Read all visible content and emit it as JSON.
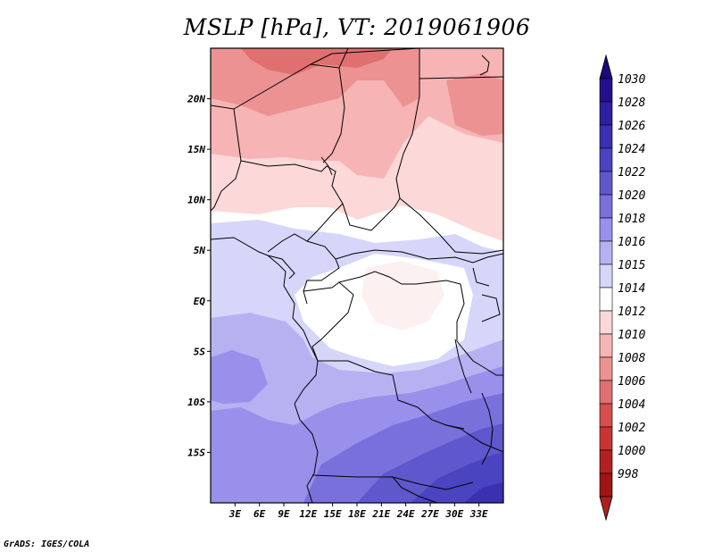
{
  "title": "MSLP [hPa], VT: 2019061906",
  "credit": "GrADS: IGES/COLA",
  "map": {
    "lon_range": [
      0,
      36
    ],
    "lat_range": [
      -20,
      25
    ],
    "lat_ticks": [
      {
        "value": 20,
        "label": "20N"
      },
      {
        "value": 15,
        "label": "15N"
      },
      {
        "value": 10,
        "label": "10N"
      },
      {
        "value": 5,
        "label": "5N"
      },
      {
        "value": 0,
        "label": "EQ"
      },
      {
        "value": -5,
        "label": "5S"
      },
      {
        "value": -10,
        "label": "10S"
      },
      {
        "value": -15,
        "label": "15S"
      }
    ],
    "lon_ticks": [
      {
        "value": 3,
        "label": "3E"
      },
      {
        "value": 6,
        "label": "6E"
      },
      {
        "value": 9,
        "label": "9E"
      },
      {
        "value": 12,
        "label": "12E"
      },
      {
        "value": 15,
        "label": "15E"
      },
      {
        "value": 18,
        "label": "18E"
      },
      {
        "value": 21,
        "label": "21E"
      },
      {
        "value": 24,
        "label": "24E"
      },
      {
        "value": 27,
        "label": "27E"
      },
      {
        "value": 30,
        "label": "30E"
      },
      {
        "value": 33,
        "label": "33E"
      }
    ]
  },
  "colorbar": {
    "levels": [
      {
        "label": "1030",
        "color": "#24108c"
      },
      {
        "label": "1028",
        "color": "#2e20a0"
      },
      {
        "label": "1026",
        "color": "#3a30b0"
      },
      {
        "label": "1024",
        "color": "#4a44c0"
      },
      {
        "label": "1022",
        "color": "#5e58cc"
      },
      {
        "label": "1020",
        "color": "#7a70dc"
      },
      {
        "label": "1018",
        "color": "#9890ea"
      },
      {
        "label": "1016",
        "color": "#b6b2f2"
      },
      {
        "label": "1015",
        "color": "#d6d6fa"
      },
      {
        "label": "1014",
        "color": "#ffffff"
      },
      {
        "label": "1012",
        "color": "#fcd8d8"
      },
      {
        "label": "1010",
        "color": "#f6b4b4"
      },
      {
        "label": "1008",
        "color": "#ec9292"
      },
      {
        "label": "1006",
        "color": "#e07070"
      },
      {
        "label": "1004",
        "color": "#d64e4e"
      },
      {
        "label": "1002",
        "color": "#c83434"
      },
      {
        "label": "1000",
        "color": "#b42020"
      },
      {
        "label": "998",
        "color": "#a01414"
      }
    ],
    "top_cap_color": "#1a0a78",
    "bottom_cap_color": "#b01e1e"
  }
}
